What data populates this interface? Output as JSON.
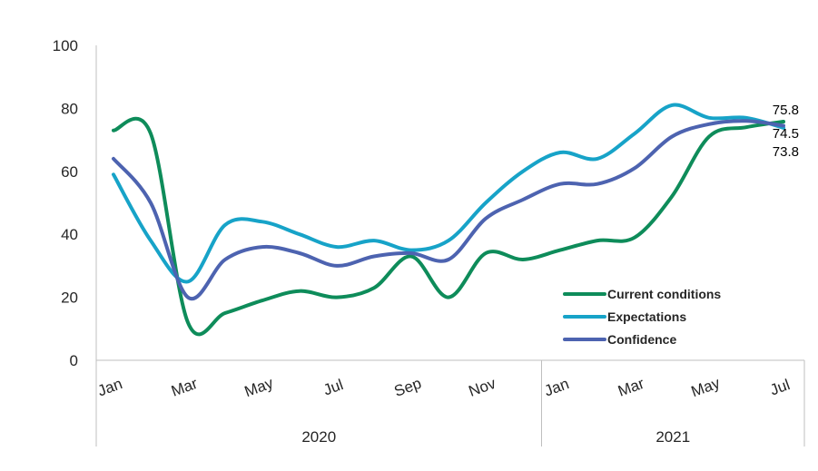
{
  "chart_data": {
    "type": "line",
    "title": "",
    "xlabel": "",
    "ylabel": "",
    "ylim": [
      0,
      100
    ],
    "yticks": [
      0,
      20,
      40,
      60,
      80,
      100
    ],
    "grid": false,
    "legend_position": "bottom-right",
    "x": [
      "Jan",
      "Feb",
      "Mar",
      "Apr",
      "May",
      "Jun",
      "Jul",
      "Aug",
      "Sep",
      "Oct",
      "Nov",
      "Dec",
      "Jan",
      "Feb",
      "Mar",
      "Apr",
      "May",
      "Jun",
      "Jul"
    ],
    "x_tick_labels": [
      "Jan",
      "",
      "Mar",
      "",
      "May",
      "",
      "Jul",
      "",
      "Sep",
      "",
      "Nov",
      "",
      "Jan",
      "",
      "Mar",
      "",
      "May",
      "",
      "Jul"
    ],
    "years": [
      {
        "label": "2020",
        "start": 0,
        "end": 11
      },
      {
        "label": "2021",
        "start": 12,
        "end": 18
      }
    ],
    "series": [
      {
        "name": "Current conditions",
        "color": "#0e8c5a",
        "values": [
          73,
          72,
          12,
          15,
          19,
          22,
          20,
          23,
          33,
          20,
          34,
          32,
          35,
          38,
          39,
          52,
          71,
          74,
          75.8
        ]
      },
      {
        "name": "Expectations",
        "color": "#17a3c8",
        "values": [
          59,
          38,
          25,
          43,
          44,
          40,
          36,
          38,
          35,
          38,
          50,
          60,
          66,
          64,
          72,
          81,
          77,
          77,
          73.8
        ]
      },
      {
        "name": "Confidence",
        "color": "#4d63b0",
        "values": [
          64,
          50,
          20,
          32,
          36,
          34,
          30,
          33,
          34,
          32,
          45,
          51,
          56,
          56,
          61,
          71,
          75,
          76,
          74.5
        ]
      }
    ],
    "end_labels": [
      "75.8",
      "74.5",
      "73.8"
    ]
  }
}
